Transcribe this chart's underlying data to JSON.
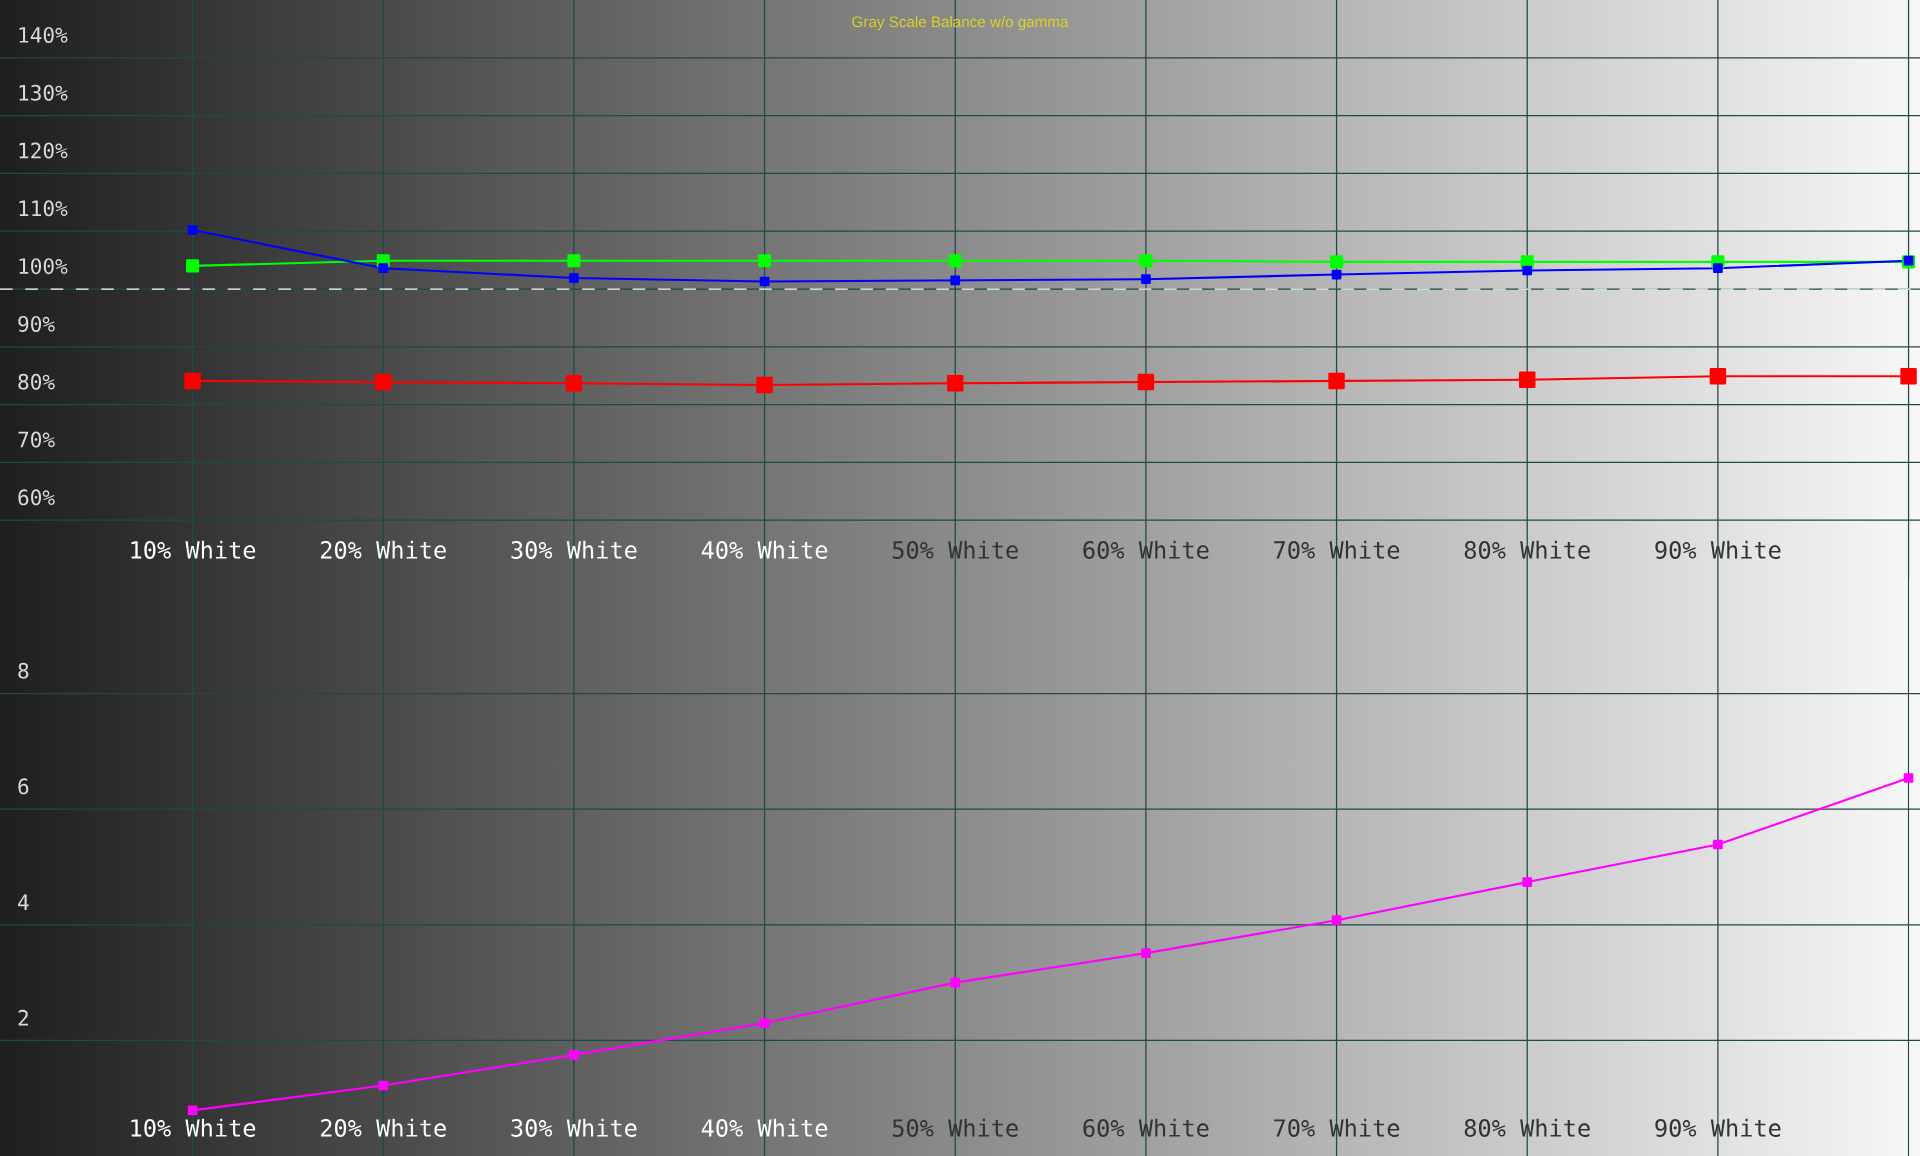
{
  "chart_data": [
    {
      "type": "line",
      "title": "Gray Scale Balance w/o gamma",
      "categories": [
        "10% White",
        "20% White",
        "30% White",
        "40% White",
        "50% White",
        "60% White",
        "70% White",
        "80% White",
        "90% White",
        null
      ],
      "series": [
        {
          "color": "#ff0000",
          "values": [
            84.1,
            83.9,
            83.7,
            83.4,
            83.7,
            83.9,
            84.1,
            84.3,
            84.9,
            84.9
          ]
        },
        {
          "color": "#00ff00",
          "values": [
            104.0,
            104.9,
            104.9,
            104.9,
            104.9,
            104.9,
            104.7,
            104.7,
            104.7,
            104.7
          ]
        },
        {
          "color": "#0000ff",
          "values": [
            110.2,
            103.6,
            101.9,
            101.3,
            101.5,
            101.7,
            102.5,
            103.2,
            103.6,
            104.9
          ]
        }
      ],
      "ylim": [
        50,
        150
      ],
      "yticks": [
        {
          "value": 60,
          "label": "60%"
        },
        {
          "value": 70,
          "label": "70%"
        },
        {
          "value": 80,
          "label": "80%"
        },
        {
          "value": 90,
          "label": "90%"
        },
        {
          "value": 100,
          "label": "100%"
        },
        {
          "value": 110,
          "label": "110%"
        },
        {
          "value": 120,
          "label": "120%"
        },
        {
          "value": 130,
          "label": "130%"
        },
        {
          "value": 140,
          "label": "140%"
        }
      ],
      "ref_lines": [
        {
          "axis": "y",
          "value": 100,
          "color": "#ffffff",
          "line_style": "dashed"
        }
      ],
      "grid": true,
      "marker": "square",
      "line_style": "solid"
    },
    {
      "type": "line",
      "categories": [
        "10% White",
        "20% White",
        "30% White",
        "40% White",
        "50% White",
        "60% White",
        "70% White",
        "80% White",
        "90% White",
        null
      ],
      "series": [
        {
          "color": "#ff00ff",
          "values": [
            0.79,
            1.22,
            1.75,
            2.3,
            3.0,
            3.51,
            4.08,
            4.74,
            5.39,
            6.54
          ]
        }
      ],
      "ylim": [
        0,
        10
      ],
      "yticks": [
        2,
        4,
        6,
        8
      ],
      "grid": true,
      "marker": "square",
      "line_style": "solid"
    }
  ]
}
